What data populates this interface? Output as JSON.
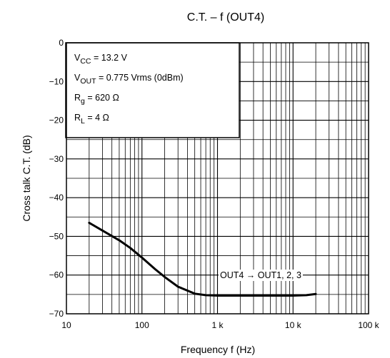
{
  "chart_data": {
    "type": "line",
    "title": "C.T. – f (OUT4)",
    "xlabel": "Frequency   f   (Hz)",
    "ylabel": "Cross talk   C.T.   (dB)",
    "x_scale": "log",
    "xlim": [
      10,
      100000
    ],
    "ylim": [
      -70,
      0
    ],
    "x_ticks": [
      10,
      100,
      1000,
      10000,
      100000
    ],
    "x_tick_labels": [
      "10",
      "100",
      "1 k",
      "10 k",
      "100 k"
    ],
    "y_ticks": [
      0,
      -10,
      -20,
      -30,
      -40,
      -50,
      -60,
      -70
    ],
    "y_tick_labels": [
      "0",
      "−10",
      "−20",
      "−30",
      "−40",
      "−50",
      "−60",
      "−70"
    ],
    "grid": true,
    "series": [
      {
        "x": [
          20,
          30,
          50,
          70,
          100,
          150,
          200,
          300,
          500,
          700,
          1000,
          2000,
          5000,
          10000,
          15000,
          20000
        ],
        "y": [
          -46.5,
          -48.5,
          -51,
          -53,
          -55.5,
          -58.5,
          -60.5,
          -63,
          -64.8,
          -65.2,
          -65.3,
          -65.3,
          -65.3,
          -65.3,
          -65.2,
          -64.9
        ]
      }
    ],
    "conditions": [
      {
        "main": "V",
        "sub": "CC",
        "rest": " = 13.2 V"
      },
      {
        "main": "V",
        "sub": "OUT",
        "rest": " = 0.775 Vrms (0dBm)"
      },
      {
        "main": "R",
        "sub": "g",
        "rest": " = 620 Ω"
      },
      {
        "main": "R",
        "sub": "L",
        "rest": " = 4 Ω"
      }
    ],
    "annotation": "OUT4 → OUT1, 2, 3"
  }
}
